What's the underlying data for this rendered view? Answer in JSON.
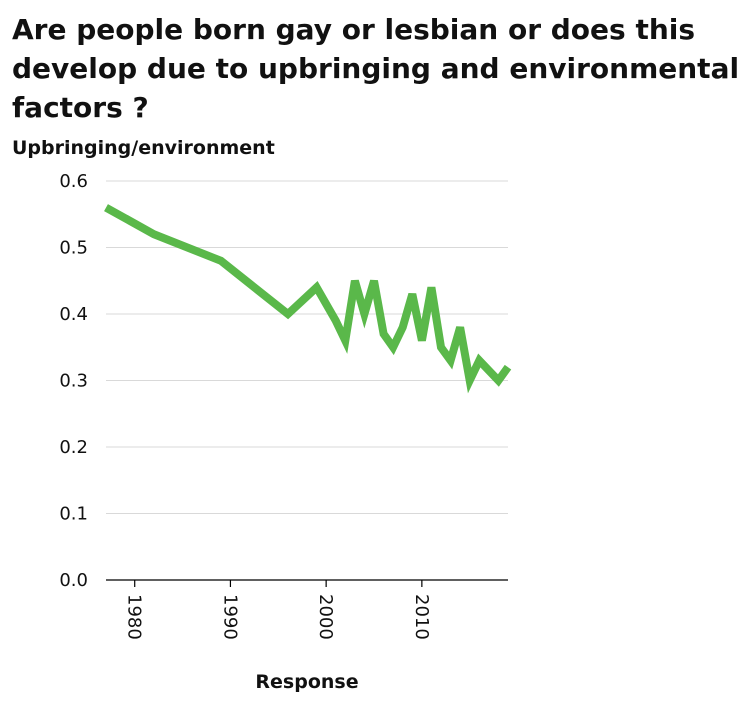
{
  "chart_data": {
    "type": "line",
    "title_lines": [
      "Are people born gay or lesbian or does this",
      "develop due to upbringing and environmental",
      "factors ?"
    ],
    "xlabel": "Response",
    "ylabel": "Upbringing/environment",
    "xlim": [
      1977,
      2019
    ],
    "ylim": [
      0,
      0.6
    ],
    "x_ticks": [
      1980,
      1990,
      2000,
      2010
    ],
    "y_ticks": [
      "0.0",
      "0.1",
      "0.2",
      "0.3",
      "0.4",
      "0.5",
      "0.6"
    ],
    "grid": true,
    "color": "#5ab84a",
    "series": [
      {
        "x": [
          1977,
          1982,
          1989,
          1996,
          1999,
          2001,
          2002,
          2003,
          2004,
          2005,
          2006,
          2007,
          2008,
          2009,
          2010,
          2011,
          2012,
          2013,
          2014,
          2015,
          2016,
          2018,
          2019
        ],
        "values": [
          0.56,
          0.52,
          0.48,
          0.4,
          0.44,
          0.39,
          0.36,
          0.45,
          0.4,
          0.45,
          0.37,
          0.35,
          0.38,
          0.43,
          0.36,
          0.44,
          0.35,
          0.33,
          0.38,
          0.3,
          0.33,
          0.3,
          0.32
        ]
      }
    ]
  }
}
